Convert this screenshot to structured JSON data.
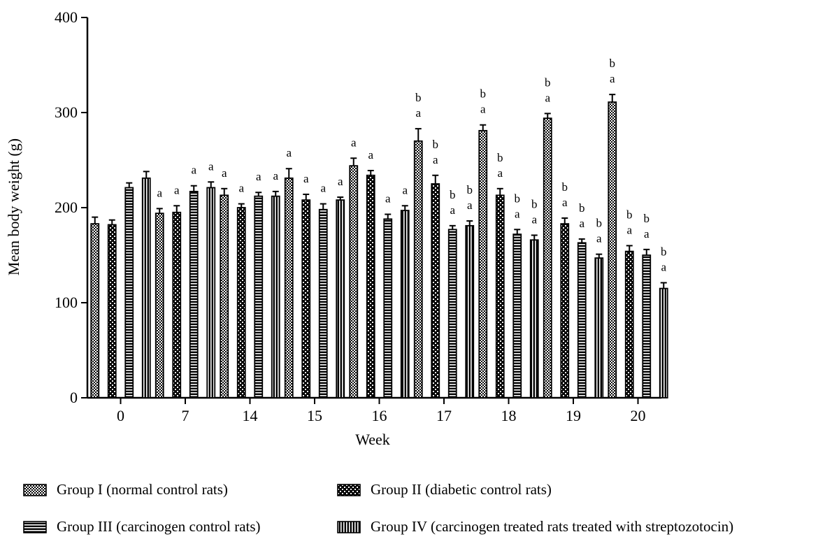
{
  "chart_data": {
    "type": "bar",
    "title": "",
    "xlabel": "Week",
    "ylabel": "Mean body weight (g)",
    "ylim": [
      0,
      400
    ],
    "yticks": [
      0,
      100,
      200,
      300,
      400
    ],
    "categories": [
      "0",
      "7",
      "14",
      "15",
      "16",
      "17",
      "18",
      "19",
      "20"
    ],
    "legend_position": "bottom",
    "series": [
      {
        "name": "Group I (normal control rats)",
        "pattern": "fine-checker",
        "values": [
          183,
          194,
          213,
          231,
          244,
          270,
          281,
          294,
          311
        ],
        "errors": [
          7,
          5,
          7,
          10,
          8,
          13,
          6,
          5,
          8
        ],
        "annotations": [
          "",
          "a",
          "a",
          "a",
          "a",
          "a\nb",
          "a\nb",
          "a\nb",
          "a\nb"
        ]
      },
      {
        "name": "Group II (diabetic control rats)",
        "pattern": "coarse-checker",
        "values": [
          182,
          195,
          200,
          208,
          234,
          225,
          213,
          183,
          154
        ],
        "errors": [
          5,
          7,
          4,
          6,
          5,
          9,
          7,
          6,
          6
        ],
        "annotations": [
          "",
          "a",
          "a",
          "a",
          "a",
          "a\nb",
          "a\nb",
          "a\nb",
          "a\nb"
        ]
      },
      {
        "name": "Group III (carcinogen control rats)",
        "pattern": "horizontal-lines",
        "values": [
          221,
          217,
          212,
          198,
          188,
          177,
          172,
          163,
          150
        ],
        "errors": [
          5,
          6,
          4,
          6,
          5,
          4,
          5,
          4,
          6
        ],
        "annotations": [
          "",
          "a",
          "a",
          "a",
          "a",
          "a\nb",
          "a\nb",
          "a\nb",
          "a\nb"
        ]
      },
      {
        "name": "Group IV (carcinogen treated rats treated with streptozotocin)",
        "pattern": "vertical-lines",
        "values": [
          231,
          221,
          212,
          208,
          197,
          181,
          166,
          147,
          115
        ],
        "errors": [
          7,
          6,
          5,
          3,
          5,
          5,
          5,
          4,
          6
        ],
        "annotations": [
          "",
          "a",
          "a",
          "a",
          "a",
          "a\nb",
          "a\nb",
          "a\nb",
          "a\nb"
        ]
      }
    ]
  }
}
